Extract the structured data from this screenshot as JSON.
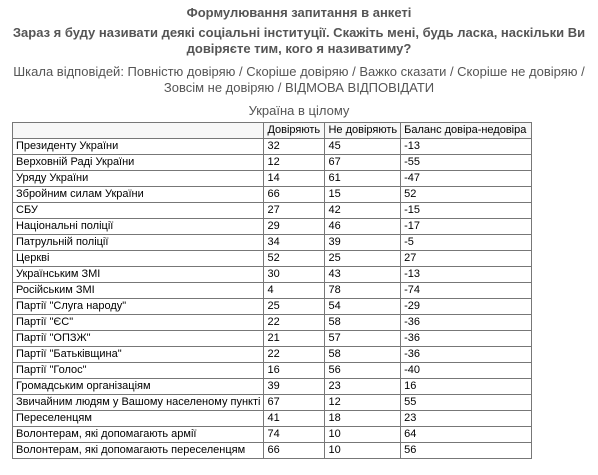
{
  "heading": "Формулювання запитання в анкеті",
  "question_line1": "Зараз я буду називати деякі соціальні інституції. Скажіть мені, будь ласка, наскільки Ви",
  "question_line2": "довіряєте тим, кого я називатиму?",
  "scale_line1": "Шкала відповідей: Повністю довіряю / Скоріше довіряю / Важко сказати / Скоріше не довіряю /",
  "scale_line2": "Зовсім не довіряю / ВІДМОВА ВІДПОВІДАТИ",
  "subtitle": "Україна в цілому",
  "columns": [
    "",
    "Довіряють",
    "Не довіряють",
    "Баланс довіра-недовіра"
  ],
  "rows": [
    {
      "name": "Президенту України",
      "trust": "32",
      "distrust": "45",
      "balance": "-13"
    },
    {
      "name": "Верховній Раді України",
      "trust": "12",
      "distrust": "67",
      "balance": "-55"
    },
    {
      "name": "Уряду України",
      "trust": "14",
      "distrust": "61",
      "balance": "-47"
    },
    {
      "name": "Збройним силам України",
      "trust": "66",
      "distrust": "15",
      "balance": "52"
    },
    {
      "name": "СБУ",
      "trust": "27",
      "distrust": "42",
      "balance": "-15"
    },
    {
      "name": "Національні поліції",
      "trust": "29",
      "distrust": "46",
      "balance": "-17"
    },
    {
      "name": "Патрульній поліції",
      "trust": "34",
      "distrust": "39",
      "balance": "-5"
    },
    {
      "name": "Церкві",
      "trust": "52",
      "distrust": "25",
      "balance": "27"
    },
    {
      "name": "Українським ЗМІ",
      "trust": "30",
      "distrust": "43",
      "balance": "-13"
    },
    {
      "name": "Російським ЗМІ",
      "trust": "4",
      "distrust": "78",
      "balance": "-74"
    },
    {
      "name": "Партії \"Слуга народу\"",
      "trust": "25",
      "distrust": "54",
      "balance": "-29"
    },
    {
      "name": "Партії \"ЄС\"",
      "trust": "22",
      "distrust": "58",
      "balance": "-36"
    },
    {
      "name": "Партії \"ОПЗЖ\"",
      "trust": "21",
      "distrust": "57",
      "balance": "-36"
    },
    {
      "name": "Партії \"Батьківщина\"",
      "trust": "22",
      "distrust": "58",
      "balance": "-36"
    },
    {
      "name": "Партії \"Голос\"",
      "trust": "16",
      "distrust": "56",
      "balance": "-40"
    },
    {
      "name": "Громадським організаціям",
      "trust": "39",
      "distrust": "23",
      "balance": "16"
    },
    {
      "name": "Звичайним людям у Вашому населеному пункті",
      "trust": "67",
      "distrust": "12",
      "balance": "55"
    },
    {
      "name": "Переселенцям",
      "trust": "41",
      "distrust": "18",
      "balance": "23"
    },
    {
      "name": "Волонтерам, які допомагають армії",
      "trust": "74",
      "distrust": "10",
      "balance": "64"
    },
    {
      "name": "Волонтерам, які допомагають переселенцям",
      "trust": "66",
      "distrust": "10",
      "balance": "56"
    }
  ]
}
